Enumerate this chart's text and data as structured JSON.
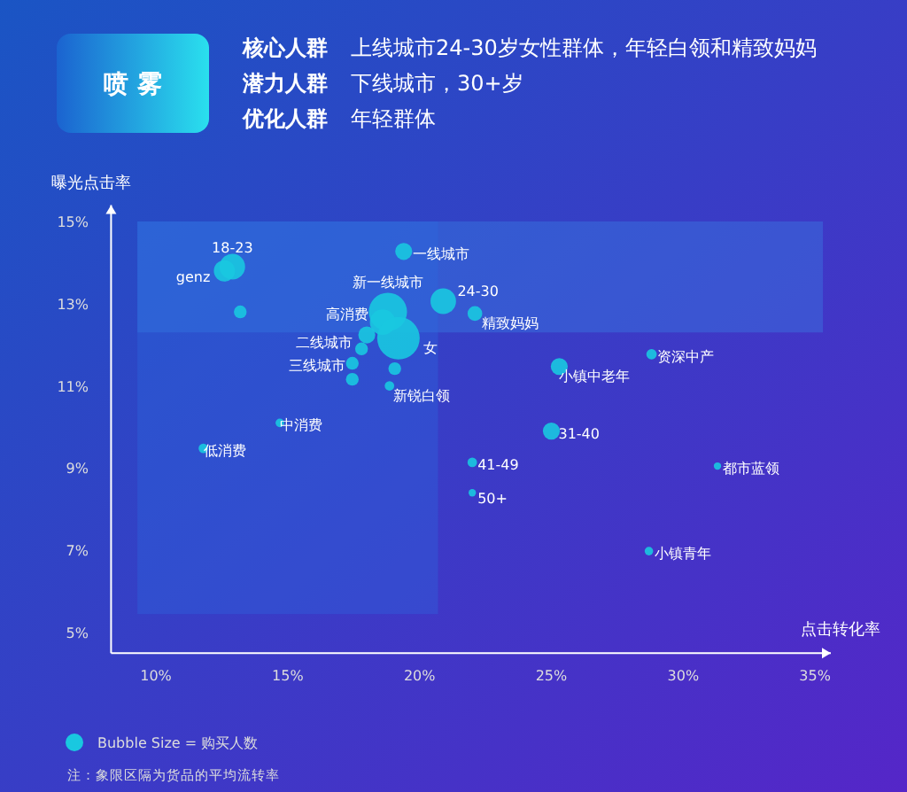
{
  "chart_data": {
    "type": "bubble",
    "title": "喷 雾",
    "xlabel": "点击转化率",
    "ylabel": "曝光点击率",
    "xlim": [
      8.3,
      35.6
    ],
    "ylim": [
      4.5,
      15.4
    ],
    "xticks": [
      {
        "value": 10,
        "label": "10%"
      },
      {
        "value": 15,
        "label": "15%"
      },
      {
        "value": 20,
        "label": "20%"
      },
      {
        "value": 25,
        "label": "25%"
      },
      {
        "value": 30,
        "label": "30%"
      },
      {
        "value": 35,
        "label": "35%"
      }
    ],
    "yticks": [
      {
        "value": 5,
        "label": "5%"
      },
      {
        "value": 7,
        "label": "7%"
      },
      {
        "value": 9,
        "label": "9%"
      },
      {
        "value": 11,
        "label": "11%"
      },
      {
        "value": 13,
        "label": "13%"
      },
      {
        "value": 15,
        "label": "15%"
      }
    ],
    "grid": false,
    "legend": "bottom left",
    "bands": [
      {
        "axis": "y",
        "from": 12.3,
        "to": 15,
        "color": "#3a8ae8"
      },
      {
        "axis": "x",
        "from": 9.3,
        "to": 20.7,
        "color": "#2a6ae0"
      }
    ],
    "series": [
      {
        "name": "Bubble Size = 购买人数",
        "color": "#19c8e0",
        "x": [
          12.9,
          12.6,
          13.2,
          19.4,
          18.8,
          18.6,
          19.2,
          20.9,
          22.1,
          18.0,
          17.8,
          17.45,
          17.45,
          19.06,
          18.86,
          14.7,
          11.8,
          25.0,
          22.0,
          22.0,
          31.3,
          28.7,
          25.3,
          28.8
        ],
        "values": [
          13.9,
          13.8,
          12.8,
          14.27,
          12.8,
          12.55,
          12.16,
          13.06,
          12.76,
          12.24,
          11.9,
          11.55,
          11.16,
          11.42,
          11.0,
          10.1,
          9.48,
          9.9,
          9.14,
          8.4,
          9.05,
          6.98,
          11.47,
          11.77
        ],
        "sizes": [
          0.36,
          0.25,
          0.09,
          0.16,
          0.81,
          0.36,
          1,
          0.36,
          0.12,
          0.16,
          0.09,
          0.09,
          0.09,
          0.09,
          0.05,
          0.04,
          0.05,
          0.16,
          0.05,
          0.03,
          0.03,
          0.04,
          0.16,
          0.06
        ]
      }
    ],
    "annotations": [
      "核心人群",
      "上线城市24-30岁女性群体，年轻白领和精致妈妈",
      "潜力人群",
      "下线城市，30+岁",
      "优化人群",
      "年轻群体",
      "注：象限区隔为货品的平均流转率",
      {
        "text": "18-23",
        "x": 12.9,
        "y": 13.9
      },
      {
        "text": "genz",
        "x": 12.6,
        "y": 13.8
      },
      {
        "text": "一线城市",
        "x": 19.4,
        "y": 14.27
      },
      {
        "text": "新一线城市",
        "x": 18.8,
        "y": 12.8
      },
      {
        "text": "高消费",
        "x": 18.6,
        "y": 12.55
      },
      {
        "text": "女",
        "x": 19.2,
        "y": 12.16
      },
      {
        "text": "24-30",
        "x": 20.9,
        "y": 13.06
      },
      {
        "text": "精致妈妈",
        "x": 22.1,
        "y": 12.76
      },
      {
        "text": "二线城市",
        "x": 18.0,
        "y": 12.24
      },
      {
        "text": "三线城市",
        "x": 17.45,
        "y": 11.55
      },
      {
        "text": "新锐白领",
        "x": 18.86,
        "y": 11.0
      },
      {
        "text": "中消费",
        "x": 14.7,
        "y": 10.1
      },
      {
        "text": "低消费",
        "x": 11.8,
        "y": 9.48
      },
      {
        "text": "31-40",
        "x": 25.0,
        "y": 9.9
      },
      {
        "text": "41-49",
        "x": 22.0,
        "y": 9.14
      },
      {
        "text": "50+",
        "x": 22.0,
        "y": 8.4
      },
      {
        "text": "都市蓝领",
        "x": 31.3,
        "y": 9.05
      },
      {
        "text": "小镇青年",
        "x": 28.7,
        "y": 6.98
      },
      {
        "text": "小镇中老年",
        "x": 25.3,
        "y": 11.47
      },
      {
        "text": "资深中产",
        "x": 28.8,
        "y": 11.77
      }
    ]
  }
}
